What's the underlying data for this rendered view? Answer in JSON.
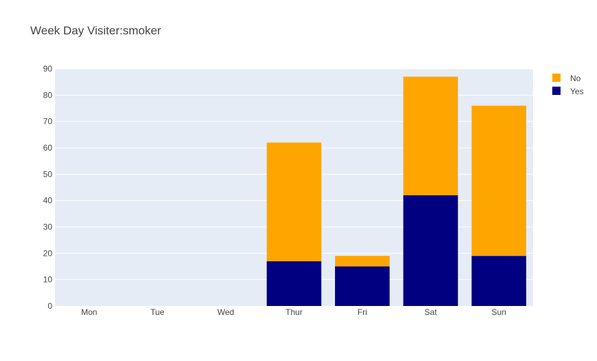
{
  "chart_data": {
    "type": "bar",
    "barmode": "stack",
    "title": "Week Day Visiter:smoker",
    "categories": [
      "Mon",
      "Tue",
      "Wed",
      "Thur",
      "Fri",
      "Sat",
      "Sun"
    ],
    "series": [
      {
        "name": "Yes",
        "color": "#000080",
        "values": [
          0,
          0,
          0,
          17,
          15,
          42,
          19
        ]
      },
      {
        "name": "No",
        "color": "#FFA500",
        "values": [
          0,
          0,
          0,
          45,
          4,
          45,
          57
        ]
      }
    ],
    "ylim": [
      0,
      90
    ],
    "yticks": [
      0,
      10,
      20,
      30,
      40,
      50,
      60,
      70,
      80,
      90
    ],
    "grid": true,
    "legend": {
      "placement": "top-right",
      "order": [
        "No",
        "Yes"
      ]
    },
    "colors": {
      "plot_background": "#E5ECF6",
      "gridline": "#FFFFFF",
      "text": "#444444"
    }
  }
}
